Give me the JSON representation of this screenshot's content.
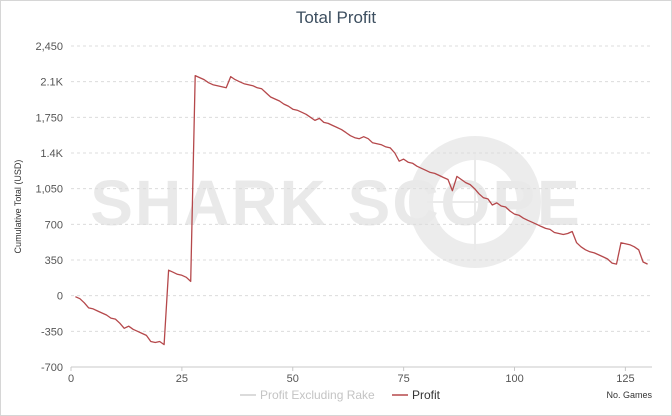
{
  "chart_data": {
    "type": "line",
    "title": "Total Profit",
    "ylabel": "Cumulative Total (USD)",
    "xlabel": "No. Games",
    "xlim": [
      0,
      131
    ],
    "ylim": [
      -700,
      2450
    ],
    "x_ticks": [
      0,
      25,
      50,
      75,
      100,
      125
    ],
    "y_ticks": [
      {
        "v": 2450,
        "label": "2,450"
      },
      {
        "v": 2100,
        "label": "2.1K"
      },
      {
        "v": 1750,
        "label": "1,750"
      },
      {
        "v": 1400,
        "label": "1.4K"
      },
      {
        "v": 1050,
        "label": "1,050"
      },
      {
        "v": 700,
        "label": "700"
      },
      {
        "v": 350,
        "label": "350"
      },
      {
        "v": 0,
        "label": "0"
      },
      {
        "v": -350,
        "label": "-350"
      },
      {
        "v": -700,
        "label": "-700"
      }
    ],
    "grid": true,
    "legend_position": "bottom",
    "watermark": "SHARK SCOPE",
    "series": [
      {
        "name": "Profit Excluding Rake",
        "color": "#cfcfcf",
        "x": [],
        "y": []
      },
      {
        "name": "Profit",
        "color": "#b5484b",
        "x": [
          1,
          2,
          3,
          4,
          5,
          6,
          7,
          8,
          9,
          10,
          11,
          12,
          13,
          14,
          15,
          16,
          17,
          18,
          19,
          20,
          21,
          22,
          23,
          24,
          25,
          26,
          27,
          28,
          29,
          30,
          31,
          32,
          33,
          34,
          35,
          36,
          37,
          38,
          39,
          40,
          41,
          42,
          43,
          44,
          45,
          46,
          47,
          48,
          49,
          50,
          51,
          52,
          53,
          54,
          55,
          56,
          57,
          58,
          59,
          60,
          61,
          62,
          63,
          64,
          65,
          66,
          67,
          68,
          69,
          70,
          71,
          72,
          73,
          74,
          75,
          76,
          77,
          78,
          79,
          80,
          81,
          82,
          83,
          84,
          85,
          86,
          87,
          88,
          89,
          90,
          91,
          92,
          93,
          94,
          95,
          96,
          97,
          98,
          99,
          100,
          101,
          102,
          103,
          104,
          105,
          106,
          107,
          108,
          109,
          110,
          111,
          112,
          113,
          114,
          115,
          116,
          117,
          118,
          119,
          120,
          121,
          122,
          123,
          124,
          125,
          126,
          127,
          128,
          129,
          130
        ],
        "y": [
          -10,
          -30,
          -70,
          -120,
          -130,
          -150,
          -170,
          -190,
          -220,
          -230,
          -270,
          -320,
          -300,
          -330,
          -350,
          -370,
          -390,
          -450,
          -460,
          -450,
          -480,
          250,
          230,
          210,
          200,
          180,
          140,
          2160,
          2140,
          2120,
          2090,
          2070,
          2060,
          2050,
          2040,
          2150,
          2120,
          2100,
          2080,
          2070,
          2060,
          2040,
          2030,
          1990,
          1950,
          1930,
          1910,
          1880,
          1860,
          1830,
          1820,
          1800,
          1780,
          1750,
          1720,
          1740,
          1700,
          1690,
          1670,
          1650,
          1630,
          1600,
          1570,
          1550,
          1540,
          1560,
          1540,
          1500,
          1490,
          1480,
          1460,
          1450,
          1400,
          1320,
          1340,
          1310,
          1300,
          1270,
          1250,
          1230,
          1210,
          1200,
          1180,
          1160,
          1140,
          1030,
          1170,
          1140,
          1110,
          1090,
          1050,
          1000,
          960,
          950,
          890,
          910,
          880,
          870,
          830,
          800,
          790,
          760,
          740,
          720,
          700,
          680,
          660,
          650,
          620,
          610,
          600,
          610,
          630,
          520,
          480,
          450,
          430,
          420,
          400,
          380,
          360,
          320,
          310,
          520,
          510,
          500,
          480,
          450,
          330,
          310
        ]
      }
    ]
  }
}
